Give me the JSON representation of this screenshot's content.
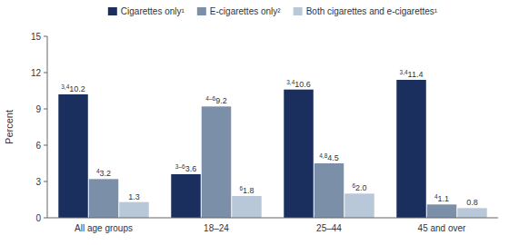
{
  "chart_data": {
    "type": "bar",
    "categories": [
      "All age groups",
      "18–24",
      "25–44",
      "45 and over"
    ],
    "series": [
      {
        "name": "Cigarettes only¹",
        "color": "#1b2f5e",
        "values": [
          10.2,
          3.6,
          10.6,
          11.4
        ],
        "value_labels": [
          "10.2",
          "3.6",
          "10.6",
          "11.4"
        ],
        "annotations": [
          "3,4",
          "3–6",
          "3,4",
          "3,4"
        ]
      },
      {
        "name": "E-cigarettes only²",
        "color": "#7b90a8",
        "values": [
          3.2,
          9.2,
          4.5,
          1.1
        ],
        "value_labels": [
          "3.2",
          "9.2",
          "4.5",
          "1.1"
        ],
        "annotations": [
          "4",
          "4–6",
          "4,8",
          "4"
        ]
      },
      {
        "name": "Both cigarettes and e-cigarettes¹",
        "color": "#b8c8d8",
        "values": [
          1.3,
          1.8,
          2.0,
          0.8
        ],
        "value_labels": [
          "1.3",
          "1.8",
          "2.0",
          "0.8"
        ],
        "annotations": [
          null,
          "6",
          "6",
          null
        ]
      }
    ],
    "y_label": "Percent",
    "ylim": [
      0,
      15
    ],
    "yticks": [
      0,
      3,
      6,
      9,
      12,
      15
    ],
    "grid": false,
    "legend": "top",
    "data_labels": true
  }
}
